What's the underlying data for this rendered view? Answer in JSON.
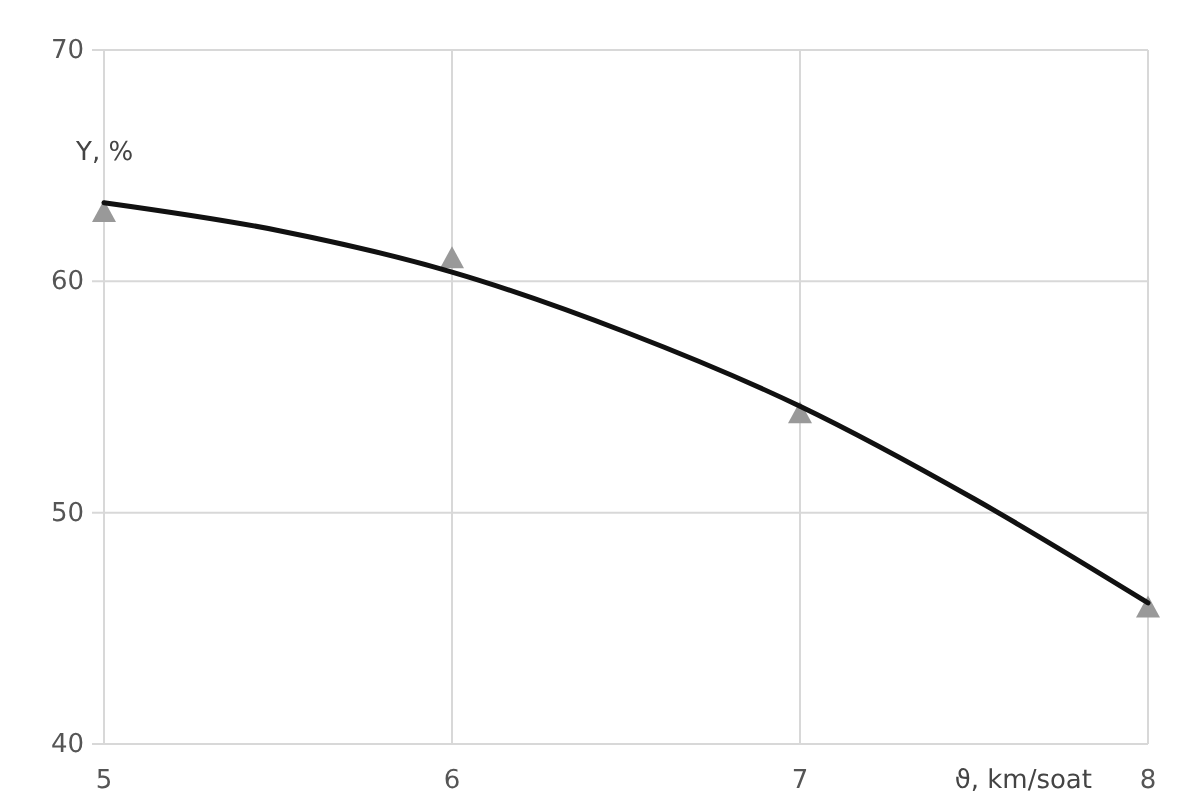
{
  "chart_data": {
    "type": "scatter",
    "xlabel": "ϑ, km/soat",
    "ylabel": "Y, %",
    "xlim": [
      5,
      8
    ],
    "xticks": [
      5,
      6,
      7,
      8
    ],
    "ylim": [
      40,
      70
    ],
    "yticks": [
      40,
      50,
      60,
      70
    ],
    "grid": true,
    "series": [
      {
        "marker": "triangle",
        "color": "#999999",
        "x": [
          5,
          6,
          7,
          8
        ],
        "values": [
          63,
          61,
          54.3,
          45.9
        ]
      },
      {
        "type": "line",
        "marker": "none",
        "line_style": "solid",
        "color": "#111111",
        "x": [
          5,
          5.5,
          6,
          6.5,
          7,
          7.5,
          8
        ],
        "values": [
          63.4,
          62.2,
          60.4,
          57.8,
          54.6,
          50.6,
          46.1
        ]
      }
    ]
  }
}
